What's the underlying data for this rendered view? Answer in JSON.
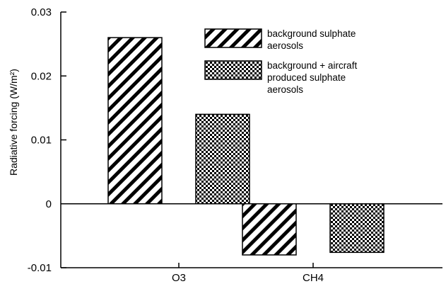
{
  "chart_data": {
    "type": "bar",
    "categories": [
      "O3",
      "CH4"
    ],
    "series": [
      {
        "name": "background sulphate aerosols",
        "values": [
          0.026,
          -0.008
        ],
        "pattern": "diagonal-hatch"
      },
      {
        "name": "background + aircraft produced sulphate aerosols",
        "values": [
          0.014,
          -0.0076
        ],
        "pattern": "checkerboard"
      }
    ],
    "title": "",
    "xlabel": "",
    "ylabel": "Radiative forcing (W/m²)",
    "ylim": [
      -0.01,
      0.03
    ],
    "yticks": [
      -0.01,
      0,
      0.01,
      0.02,
      0.03
    ],
    "ytick_labels": [
      "-0.01",
      "0",
      "0.01",
      "0.02",
      "0.03"
    ],
    "grid": false,
    "legend_position": "top-right",
    "legend_lines": [
      [
        "background sulphate",
        "aerosols"
      ],
      [
        "background + aircraft",
        "produced sulphate",
        "aerosols"
      ]
    ],
    "colors": {
      "bar_fill": "#000000",
      "background": "#ffffff"
    }
  }
}
